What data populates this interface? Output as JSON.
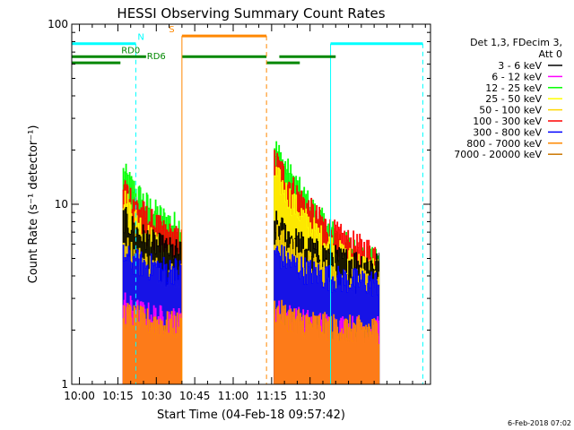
{
  "chart_data": {
    "type": "line",
    "title": "HESSI Observing Summary Count Rates",
    "xlabel": "Start Time (04-Feb-18 09:57:42)",
    "ylabel": "Count Rate (s⁻¹ detector⁻¹)",
    "ylim": [
      1,
      100
    ],
    "y_scale": "log",
    "xlim_minutes": [
      -3,
      137
    ],
    "x_tick_minutes": [
      0,
      15,
      30,
      45,
      60,
      75,
      90
    ],
    "x_tick_labels": [
      "10:00",
      "10:15",
      "10:30",
      "10:45",
      "11:00",
      "11:15",
      "11:30"
    ],
    "y_tick_values": [
      1,
      10,
      100
    ],
    "y_tick_labels": [
      "1",
      "10",
      "100"
    ],
    "timestamp": "6-Feb-2018 07:02",
    "legend": {
      "placement": "right",
      "header": [
        "Det 1,3, FDecim 3,",
        "Att 0"
      ],
      "entries": [
        {
          "label": "3 - 6 keV",
          "color": "#000000"
        },
        {
          "label": "6 - 12 keV",
          "color": "#ff00ff"
        },
        {
          "label": "12 - 25 keV",
          "color": "#00ff00"
        },
        {
          "label": "25 - 50 keV",
          "color": "#ffff00"
        },
        {
          "label": "50 - 100 keV",
          "color": "#ffd700"
        },
        {
          "label": "100 - 300 keV",
          "color": "#ff0000"
        },
        {
          "label": "300 - 800 keV",
          "color": "#0000ff"
        },
        {
          "label": "800 - 7000 keV",
          "color": "#ff8800"
        },
        {
          "label": "7000 - 20000 keV",
          "color": "#cc7700"
        }
      ]
    },
    "flags": [
      {
        "name": "N",
        "color": "#00ffff",
        "level": 78,
        "segments": [
          [
            -3,
            22
          ],
          [
            98,
            134
          ]
        ],
        "vlines": [
          [
            22,
            "dashed"
          ],
          [
            98,
            "solid"
          ],
          [
            134,
            "dashed"
          ]
        ],
        "label_at": 24
      },
      {
        "name": "RD0",
        "color": "#008800",
        "level": 66,
        "segments": [
          [
            -3,
            26
          ],
          [
            40,
            73
          ],
          [
            78,
            100
          ]
        ],
        "label_at": 20
      },
      {
        "name": "RD6",
        "color": "#008800",
        "level": 61,
        "segments": [
          [
            -3,
            16
          ],
          [
            73,
            86
          ]
        ],
        "label_at": 30
      },
      {
        "name": "S",
        "color": "#ff8800",
        "level": 86,
        "segments": [
          [
            40,
            73
          ]
        ],
        "vlines": [
          [
            40,
            "solid"
          ],
          [
            73,
            "dashed"
          ]
        ],
        "label_at": 36
      }
    ],
    "series": [
      {
        "label": "12 - 25 keV",
        "color": "#00ff00",
        "segments": [
          {
            "start": 17,
            "end": 40,
            "peak": 15,
            "decay": 10.2,
            "floor": 6.6
          },
          {
            "start": 76,
            "end": 117,
            "peak": 21,
            "decay": 13,
            "floor": 4.0
          }
        ]
      },
      {
        "label": "100 - 300 keV",
        "color": "#ff0000",
        "segments": [
          {
            "start": 17,
            "end": 40,
            "peak": 13,
            "decay": 10.2,
            "floor": 5.5
          },
          {
            "start": 76,
            "end": 117,
            "peak": 18,
            "decay": 13,
            "floor": 4.8
          }
        ]
      },
      {
        "label": "25 - 50 keV",
        "color": "#ffff00",
        "segments": [
          {
            "start": 17,
            "end": 40,
            "peak": 11,
            "decay": 10.2,
            "floor": 4.0
          },
          {
            "start": 76,
            "end": 117,
            "peak": 15,
            "decay": 13,
            "floor": 3.8
          }
        ]
      },
      {
        "label": "3 - 6 keV",
        "color": "#000000",
        "segments": [
          {
            "start": 17,
            "end": 40,
            "peak": 8.5,
            "decay": 10.2,
            "floor": 5.0
          },
          {
            "start": 76,
            "end": 117,
            "peak": 8.0,
            "decay": 13,
            "floor": 4.5
          }
        ]
      },
      {
        "label": "50 - 100 keV",
        "color": "#ffd700",
        "segments": [
          {
            "start": 17,
            "end": 40,
            "peak": 6.0,
            "decay": 10.2,
            "floor": 3.8
          },
          {
            "start": 76,
            "end": 117,
            "peak": 7.0,
            "decay": 13,
            "floor": 3.5
          }
        ]
      },
      {
        "label": "300 - 800 keV",
        "color": "#0000ff",
        "segments": [
          {
            "start": 17,
            "end": 40,
            "peak": 5.2,
            "decay": 10.2,
            "floor": 4.2
          },
          {
            "start": 76,
            "end": 117,
            "peak": 5.5,
            "decay": 13,
            "floor": 3.6
          }
        ]
      },
      {
        "label": "6 - 12 keV",
        "color": "#ff00ff",
        "segments": [
          {
            "start": 17,
            "end": 40,
            "peak": 2.8,
            "decay": 10.2,
            "floor": 2.2
          },
          {
            "start": 76,
            "end": 117,
            "peak": 2.6,
            "decay": 13,
            "floor": 2.0
          }
        ]
      },
      {
        "label": "800 - 7000 keV",
        "color": "#ff8800",
        "segments": [
          {
            "start": 17,
            "end": 40,
            "peak": 2.5,
            "decay": 10.2,
            "floor": 2.1
          },
          {
            "start": 76,
            "end": 117,
            "peak": 2.6,
            "decay": 13,
            "floor": 2.0
          }
        ]
      }
    ]
  }
}
